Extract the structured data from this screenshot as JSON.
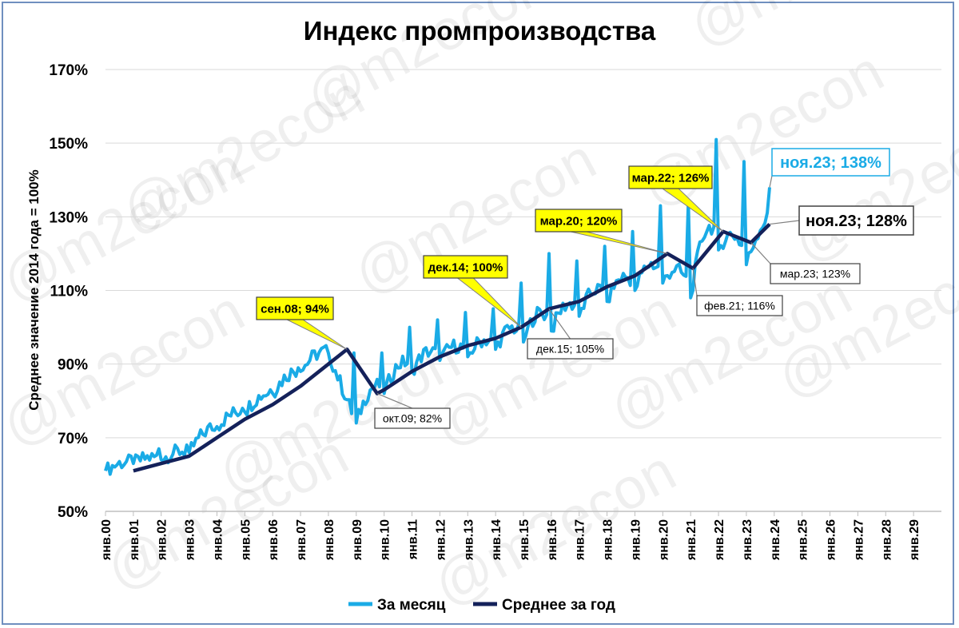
{
  "chart_data": {
    "type": "line",
    "title": "Индекс промпроизводства",
    "ylabel": "Среднее значение 2014 года = 100%",
    "xlabel": "",
    "ylim": [
      50,
      170
    ],
    "yticks": [
      "50%",
      "70%",
      "90%",
      "110%",
      "130%",
      "150%",
      "170%"
    ],
    "yticks_values": [
      50,
      70,
      90,
      110,
      130,
      150,
      170
    ],
    "x_categories": [
      "янв.00",
      "янв.01",
      "янв.02",
      "янв.03",
      "янв.04",
      "янв.05",
      "янв.06",
      "янв.07",
      "янв.08",
      "янв.09",
      "янв.10",
      "янв.11",
      "янв.12",
      "янв.13",
      "янв.14",
      "янв.15",
      "янв.16",
      "янв.17",
      "янв.18",
      "янв.19",
      "янв.20",
      "янв.21",
      "янв.22",
      "янв.23",
      "янв.24",
      "янв.25",
      "янв.26",
      "янв.27",
      "янв.28",
      "янв.29"
    ],
    "grid": true,
    "legend": "bottom",
    "series": [
      {
        "name": "За месяц",
        "color": "#1aabe6",
        "points": [
          [
            "янв.00",
            61
          ],
          [
            "янв.01",
            63
          ],
          [
            "янв.02",
            64
          ],
          [
            "янв.03",
            66
          ],
          [
            "янв.04",
            73
          ],
          [
            "янв.05",
            77
          ],
          [
            "янв.06",
            82
          ],
          [
            "янв.07",
            88
          ],
          [
            "янв.08",
            93
          ],
          [
            "янв.09",
            74
          ],
          [
            "янв.10",
            82
          ],
          [
            "янв.11",
            88
          ],
          [
            "янв.12",
            91
          ],
          [
            "янв.13",
            92
          ],
          [
            "янв.14",
            94
          ],
          [
            "янв.15",
            96
          ],
          [
            "янв.16",
            99
          ],
          [
            "янв.17",
            103
          ],
          [
            "янв.18",
            107
          ],
          [
            "янв.19",
            110
          ],
          [
            "янв.20",
            112
          ],
          [
            "янв.21",
            108
          ],
          [
            "янв.22",
            121
          ],
          [
            "янв.23",
            117
          ],
          [
            "ноя.23",
            138
          ]
        ],
        "peaks": [
          [
            "дек.00",
            65
          ],
          [
            "дек.01",
            67
          ],
          [
            "дек.02",
            68
          ],
          [
            "дек.03",
            72
          ],
          [
            "дек.04",
            78
          ],
          [
            "дек.05",
            83
          ],
          [
            "дек.06",
            89
          ],
          [
            "дек.07",
            95
          ],
          [
            "дек.08",
            93
          ],
          [
            "дек.09",
            93
          ],
          [
            "дек.10",
            100
          ],
          [
            "дек.11",
            102
          ],
          [
            "дек.12",
            104
          ],
          [
            "дек.13",
            105
          ],
          [
            "дек.14",
            112
          ],
          [
            "дек.15",
            120
          ],
          [
            "дек.16",
            118
          ],
          [
            "дек.17",
            122
          ],
          [
            "дек.18",
            126
          ],
          [
            "дек.19",
            133
          ],
          [
            "дек.20",
            134
          ],
          [
            "дек.21",
            151
          ],
          [
            "дек.22",
            145
          ]
        ]
      },
      {
        "name": "Среднее за год",
        "color": "#14215a",
        "points": [
          [
            "янв.01",
            61
          ],
          [
            "янв.02",
            63
          ],
          [
            "янв.03",
            65
          ],
          [
            "янв.04",
            70
          ],
          [
            "янв.05",
            75
          ],
          [
            "янв.06",
            79
          ],
          [
            "янв.07",
            84
          ],
          [
            "янв.08",
            90
          ],
          [
            "сен.08",
            94
          ],
          [
            "окт.09",
            82
          ],
          [
            "янв.10",
            83
          ],
          [
            "янв.11",
            88
          ],
          [
            "янв.12",
            92
          ],
          [
            "янв.13",
            95
          ],
          [
            "янв.14",
            97
          ],
          [
            "дек.14",
            100
          ],
          [
            "дек.15",
            105
          ],
          [
            "янв.17",
            107
          ],
          [
            "янв.18",
            111
          ],
          [
            "янв.19",
            114
          ],
          [
            "мар.20",
            120
          ],
          [
            "фев.21",
            116
          ],
          [
            "мар.22",
            126
          ],
          [
            "мар.23",
            123
          ],
          [
            "ноя.23",
            128
          ]
        ]
      }
    ],
    "annotations": [
      {
        "text": "сен.08; 94%",
        "style": "yellow"
      },
      {
        "text": "окт.09; 82%",
        "style": "white"
      },
      {
        "text": "дек.14; 100%",
        "style": "yellow"
      },
      {
        "text": "дек.15; 105%",
        "style": "white"
      },
      {
        "text": "мар.20; 120%",
        "style": "yellow"
      },
      {
        "text": "фев.21; 116%",
        "style": "white"
      },
      {
        "text": "мар.22; 126%",
        "style": "yellow"
      },
      {
        "text": "мар.23; 123%",
        "style": "white"
      },
      {
        "text": "ноя.23; 138%",
        "style": "big-blue"
      },
      {
        "text": "ноя.23; 128%",
        "style": "big-dark"
      }
    ],
    "watermark": "@m2econ"
  }
}
